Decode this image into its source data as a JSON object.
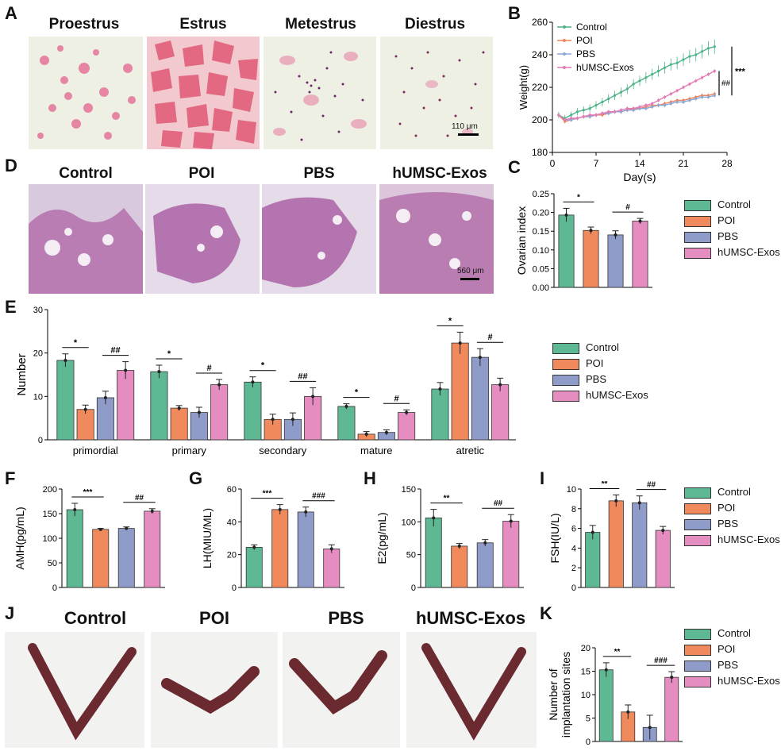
{
  "panels": {
    "A": "A",
    "B": "B",
    "C": "C",
    "D": "D",
    "E": "E",
    "F": "F",
    "G": "G",
    "H": "H",
    "I": "I",
    "J": "J",
    "K": "K"
  },
  "panelA": {
    "titles": [
      "Proestrus",
      "Estrus",
      "Metestrus",
      "Diestrus"
    ],
    "scale": "110 μm"
  },
  "panelD": {
    "titles": [
      "Control",
      "POI",
      "PBS",
      "hUMSC-Exos"
    ],
    "scale": "560 μm"
  },
  "panelJ": {
    "titles": [
      "Control",
      "POI",
      "PBS",
      "hUMSC-Exos"
    ]
  },
  "legend": {
    "items": [
      "Control",
      "POI",
      "PBS",
      "hUMSC-Exos"
    ]
  },
  "colors": {
    "Control": "#5fb894",
    "POI": "#f08a5d",
    "PBS": "#8f9bc9",
    "hUMSC-Exos": "#e58cc0",
    "line_control": "#4db387",
    "line_poi": "#f0825a",
    "line_pbs": "#8aa8d6",
    "line_exos": "#e27ab5"
  },
  "chart_data": [
    {
      "id": "B",
      "type": "line",
      "xlabel": "Day(s)",
      "ylabel": "Weight(g)",
      "xlim": [
        0,
        28
      ],
      "ylim": [
        180,
        260
      ],
      "xticks": [
        0,
        7,
        14,
        21,
        28
      ],
      "yticks": [
        180,
        200,
        220,
        240,
        260
      ],
      "series": [
        {
          "name": "Control",
          "x": [
            1,
            2,
            3,
            4,
            5,
            6,
            7,
            8,
            9,
            10,
            11,
            12,
            13,
            14,
            15,
            16,
            17,
            18,
            19,
            20,
            21,
            22,
            23,
            24,
            25,
            26
          ],
          "y": [
            203,
            201,
            203,
            205,
            206,
            207,
            209,
            211,
            213,
            215,
            217,
            219,
            222,
            224,
            226,
            228,
            230,
            232,
            234,
            235,
            237,
            239,
            240,
            242,
            244,
            245
          ]
        },
        {
          "name": "POI",
          "x": [
            1,
            2,
            3,
            4,
            5,
            6,
            7,
            8,
            9,
            10,
            11,
            12,
            13,
            14,
            15,
            16,
            17,
            18,
            19,
            20,
            21,
            22,
            23,
            24,
            25,
            26
          ],
          "y": [
            203,
            199,
            200,
            201,
            202,
            202,
            203,
            203,
            204,
            205,
            205,
            206,
            207,
            207,
            208,
            209,
            209,
            210,
            211,
            212,
            212,
            213,
            214,
            215,
            215,
            216
          ]
        },
        {
          "name": "PBS",
          "x": [
            1,
            2,
            3,
            4,
            5,
            6,
            7,
            8,
            9,
            10,
            11,
            12,
            13,
            14,
            15,
            16,
            17,
            18,
            19,
            20,
            21,
            22,
            23,
            24,
            25,
            26
          ],
          "y": [
            203,
            200,
            200,
            201,
            202,
            202,
            203,
            204,
            204,
            205,
            205,
            206,
            206,
            207,
            207,
            208,
            209,
            209,
            210,
            211,
            211,
            212,
            213,
            214,
            214,
            215
          ]
        },
        {
          "name": "hUMSC-Exos",
          "x": [
            1,
            2,
            3,
            4,
            5,
            6,
            7,
            8,
            9,
            10,
            11,
            12,
            13,
            14,
            15,
            16,
            17,
            18,
            19,
            20,
            21,
            22,
            23,
            24,
            25,
            26
          ],
          "y": [
            203,
            200,
            201,
            201,
            202,
            203,
            203,
            204,
            205,
            205,
            206,
            207,
            207,
            208,
            209,
            210,
            212,
            214,
            216,
            218,
            220,
            222,
            224,
            226,
            228,
            230
          ]
        }
      ],
      "annotations": [
        "***",
        "##"
      ]
    },
    {
      "id": "C",
      "type": "bar",
      "ylabel": "Ovarian index",
      "ylim": [
        0,
        0.25
      ],
      "yticks": [
        "0.00",
        "0.05",
        "0.10",
        "0.15",
        "0.20",
        "0.25"
      ],
      "categories": [
        "Control",
        "POI",
        "PBS",
        "hUMSC-Exos"
      ],
      "values": [
        0.193,
        0.152,
        0.14,
        0.177
      ],
      "errors": [
        0.018,
        0.009,
        0.011,
        0.007
      ],
      "annotations": [
        "*",
        "#"
      ]
    },
    {
      "id": "E",
      "type": "bar",
      "ylabel": "Number",
      "ylim": [
        0,
        30
      ],
      "yticks": [
        "0",
        "10",
        "20",
        "30"
      ],
      "categories": [
        "primordial",
        "primary",
        "secondary",
        "mature",
        "atretic"
      ],
      "series": [
        {
          "name": "Control",
          "values": [
            18.3,
            15.7,
            13.3,
            7.7,
            11.7
          ],
          "errors": [
            1.5,
            1.5,
            1.2,
            0.6,
            1.5
          ]
        },
        {
          "name": "POI",
          "values": [
            7.0,
            7.3,
            4.7,
            1.3,
            22.3
          ],
          "errors": [
            1.0,
            0.6,
            1.2,
            0.6,
            2.5
          ]
        },
        {
          "name": "PBS",
          "values": [
            9.7,
            6.3,
            4.7,
            1.7,
            19.0
          ],
          "errors": [
            1.5,
            1.2,
            1.5,
            0.6,
            2.0
          ]
        },
        {
          "name": "hUMSC-Exos",
          "values": [
            16.0,
            12.7,
            10.0,
            6.3,
            12.7
          ],
          "errors": [
            2.0,
            1.2,
            2.0,
            0.6,
            1.5
          ]
        }
      ],
      "annotations": [
        "*",
        "##",
        "*",
        "#",
        "*",
        "##",
        "*",
        "#",
        "*",
        "#"
      ]
    },
    {
      "id": "F",
      "type": "bar",
      "ylabel": "AMH(pg/mL)",
      "ylim": [
        0,
        200
      ],
      "yticks": [
        "0",
        "50",
        "100",
        "150",
        "200"
      ],
      "categories": [
        "Control",
        "POI",
        "PBS",
        "hUMSC-Exos"
      ],
      "values": [
        158,
        118,
        120,
        155
      ],
      "errors": [
        13,
        2,
        3,
        5
      ],
      "annotations": [
        "***",
        "##"
      ]
    },
    {
      "id": "G",
      "type": "bar",
      "ylabel": "LH(MIU/ML)",
      "ylim": [
        0,
        60
      ],
      "yticks": [
        "0",
        "20",
        "40",
        "60"
      ],
      "categories": [
        "Control",
        "POI",
        "PBS",
        "hUMSC-Exos"
      ],
      "values": [
        24.5,
        47.5,
        46,
        23.5
      ],
      "errors": [
        1.5,
        3,
        3,
        2.5
      ],
      "annotations": [
        "***",
        "###"
      ]
    },
    {
      "id": "H",
      "type": "bar",
      "ylabel": "E2(pg/mL)",
      "ylim": [
        0,
        150
      ],
      "yticks": [
        "0",
        "50",
        "100",
        "150"
      ],
      "categories": [
        "Control",
        "POI",
        "PBS",
        "hUMSC-Exos"
      ],
      "values": [
        106,
        63,
        68,
        101
      ],
      "errors": [
        13,
        4,
        5,
        10
      ],
      "annotations": [
        "**",
        "##"
      ]
    },
    {
      "id": "I",
      "type": "bar",
      "ylabel": "FSH(IU/L)",
      "ylim": [
        0,
        10
      ],
      "yticks": [
        "0",
        "2",
        "4",
        "6",
        "8",
        "10"
      ],
      "categories": [
        "Control",
        "POI",
        "PBS",
        "hUMSC-Exos"
      ],
      "values": [
        5.6,
        8.8,
        8.6,
        5.8
      ],
      "errors": [
        0.7,
        0.6,
        0.7,
        0.4
      ],
      "annotations": [
        "**",
        "##"
      ]
    },
    {
      "id": "K",
      "type": "bar",
      "ylabel": "Number of implantation sites",
      "ylabel_line2": "implantation sites",
      "ylabel_line1": "Number of",
      "ylim": [
        0,
        20
      ],
      "yticks": [
        "0",
        "5",
        "10",
        "15",
        "20"
      ],
      "categories": [
        "Control",
        "POI",
        "PBS",
        "hUMSC-Exos"
      ],
      "values": [
        15.3,
        6.3,
        3.0,
        13.7
      ],
      "errors": [
        1.5,
        1.5,
        2.6,
        1.2
      ],
      "annotations": [
        "**",
        "###"
      ]
    }
  ]
}
